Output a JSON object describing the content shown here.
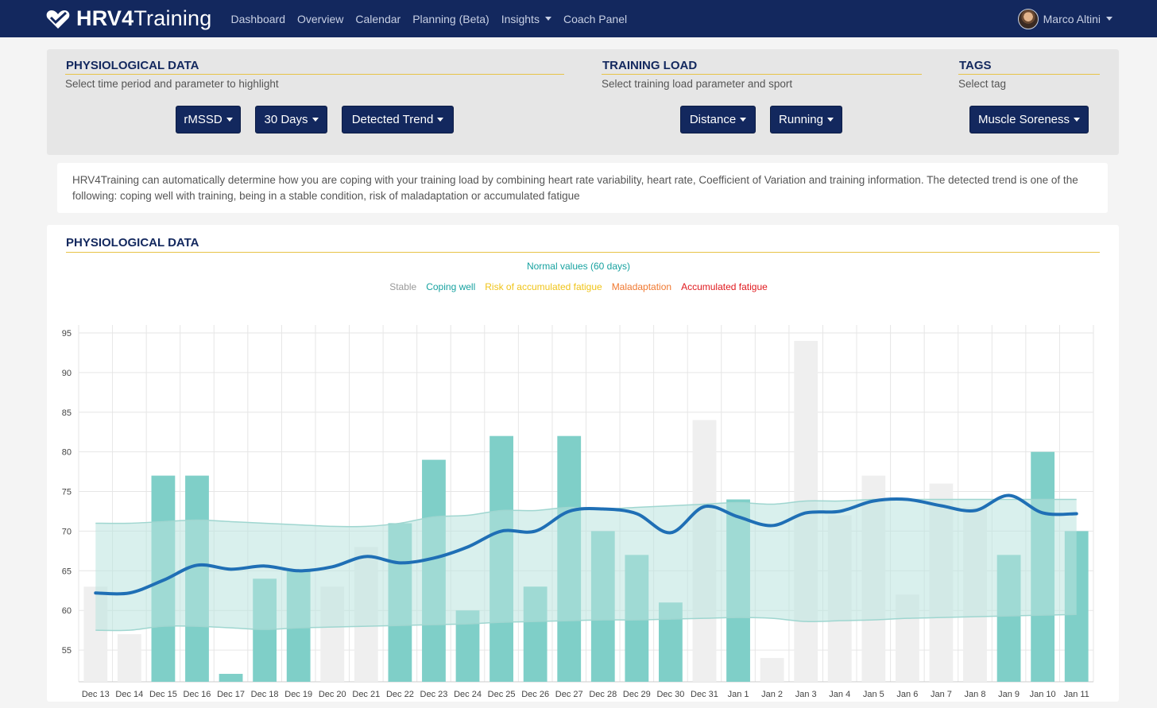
{
  "nav": {
    "brand_bold": "HRV4",
    "brand_rest": "Training",
    "links": [
      "Dashboard",
      "Overview",
      "Calendar",
      "Planning (Beta)",
      "Insights",
      "Coach Panel"
    ],
    "user": "Marco Altini"
  },
  "physio_section": {
    "title": "PHYSIOLOGICAL DATA",
    "subtitle": "Select time period and parameter to highlight"
  },
  "load_section": {
    "title": "TRAINING LOAD",
    "subtitle": "Select training load parameter and sport"
  },
  "tags_section": {
    "title": "TAGS",
    "subtitle": "Select tag"
  },
  "dropdowns": {
    "parameter": "rMSSD",
    "period": "30 Days",
    "highlight": "Detected Trend",
    "load_param": "Distance",
    "sport": "Running",
    "tag": "Muscle Soreness"
  },
  "description": "HRV4Training can automatically determine how you are coping with your training load by combining heart rate variability, heart rate, Coefficient of Variation and training information. The detected trend is one of the following: coping well with training, being in a stable condition, risk of maladaptation or accumulated fatigue",
  "chart_title": "PHYSIOLOGICAL DATA",
  "colors": {
    "stable": "#999999",
    "coping_well": "#17a2a0",
    "risk": "#f0c419",
    "maladaptation": "#f07830",
    "accumulated": "#e0191e",
    "trend_line": "#1f6fb5",
    "band": "#b9e3df",
    "bar_stable": "#efefef",
    "bar_coping": "#7fcfc8"
  },
  "chart_data": {
    "type": "bar",
    "legend_top": "Normal values (60 days)",
    "legend": [
      {
        "name": "Stable",
        "key": "stable"
      },
      {
        "name": "Coping well",
        "key": "coping_well"
      },
      {
        "name": "Risk of accumulated fatigue",
        "key": "risk"
      },
      {
        "name": "Maladaptation",
        "key": "maladaptation"
      },
      {
        "name": "Accumulated fatigue",
        "key": "accumulated"
      }
    ],
    "categories": [
      "Dec 13",
      "Dec 14",
      "Dec 15",
      "Dec 16",
      "Dec 17",
      "Dec 18",
      "Dec 19",
      "Dec 20",
      "Dec 21",
      "Dec 22",
      "Dec 23",
      "Dec 24",
      "Dec 25",
      "Dec 26",
      "Dec 27",
      "Dec 28",
      "Dec 29",
      "Dec 30",
      "Dec 31",
      "Jan 1",
      "Jan 2",
      "Jan 3",
      "Jan 4",
      "Jan 5",
      "Jan 6",
      "Jan 7",
      "Jan 8",
      "Jan 9",
      "Jan 10",
      "Jan 11"
    ],
    "values": [
      63,
      57,
      77,
      77,
      52,
      64,
      65,
      63,
      68,
      71,
      79,
      60,
      82,
      63,
      82,
      70,
      67,
      61,
      84,
      74,
      54,
      94,
      72,
      77,
      62,
      76,
      73,
      67,
      80,
      70
    ],
    "status": [
      "stable",
      "stable",
      "coping_well",
      "coping_well",
      "coping_well",
      "coping_well",
      "coping_well",
      "stable",
      "stable",
      "coping_well",
      "coping_well",
      "coping_well",
      "coping_well",
      "coping_well",
      "coping_well",
      "coping_well",
      "coping_well",
      "coping_well",
      "stable",
      "coping_well",
      "stable",
      "stable",
      "stable",
      "stable",
      "stable",
      "stable",
      "stable",
      "coping_well",
      "coping_well",
      "coping_well"
    ],
    "trend": [
      62.2,
      62.2,
      63.8,
      65.7,
      65.2,
      65.6,
      65.0,
      65.5,
      66.8,
      66.0,
      66.6,
      68.0,
      70.0,
      70.0,
      72.5,
      72.8,
      72.2,
      69.8,
      73.1,
      71.8,
      70.7,
      72.3,
      72.5,
      73.8,
      74.0,
      73.2,
      72.6,
      74.5,
      72.3,
      72.2
    ],
    "normal_upper": [
      71.0,
      71.0,
      71.2,
      71.4,
      71.2,
      71.0,
      70.8,
      70.6,
      70.6,
      71.0,
      71.8,
      72.0,
      72.6,
      72.6,
      73.0,
      72.8,
      73.0,
      73.2,
      73.4,
      73.6,
      73.4,
      73.8,
      73.8,
      74.0,
      74.0,
      74.0,
      74.0,
      74.0,
      74.0,
      74.0
    ],
    "normal_lower": [
      57.5,
      57.5,
      58.0,
      58.0,
      57.8,
      57.6,
      57.8,
      57.9,
      58.0,
      58.1,
      58.2,
      58.3,
      58.5,
      58.6,
      58.7,
      58.8,
      58.8,
      58.9,
      59.0,
      59.1,
      59.0,
      58.6,
      58.7,
      58.8,
      59.0,
      59.1,
      59.2,
      59.3,
      59.4,
      59.5
    ],
    "ylim": [
      51,
      96
    ],
    "yticks": [
      55,
      60,
      65,
      70,
      75,
      80,
      85,
      90,
      95
    ],
    "grid": true
  }
}
